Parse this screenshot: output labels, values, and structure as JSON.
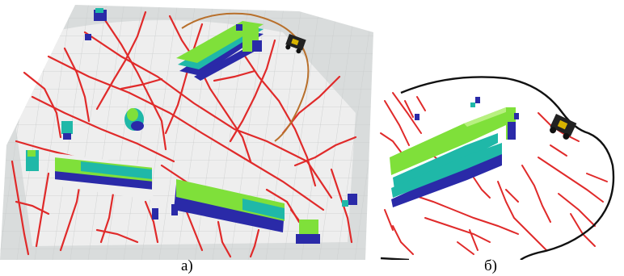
{
  "figure": {
    "caption_a": "а)",
    "caption_b": "б)"
  },
  "colors": {
    "background": "#ffffff",
    "map_free": "#eeeeee",
    "map_unknown": "#d9dcdc",
    "grid": "#c9cccc",
    "graph_edges": "#e02a2a",
    "robot_path_a": "#b8702c",
    "robot_path_b": "#111111",
    "obstacle_top": "#7fe03a",
    "obstacle_mid": "#1fb8a8",
    "obstacle_low": "#2a2aa8",
    "robot_body": "#222222"
  },
  "icons": {
    "robot": "robot-icon"
  }
}
